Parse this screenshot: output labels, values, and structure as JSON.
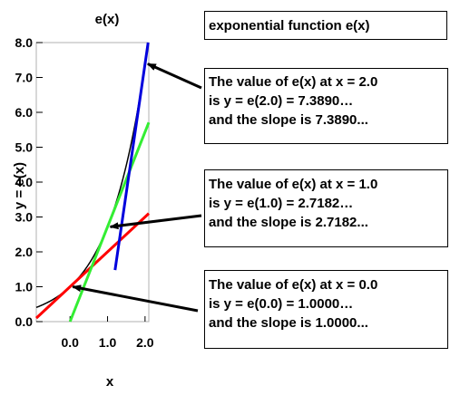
{
  "chart_data": {
    "type": "line",
    "title": "e(x)",
    "xlabel": "x",
    "ylabel": "y = e(x)",
    "xlim": [
      -0.9,
      2.1
    ],
    "ylim": [
      0,
      8
    ],
    "x_ticks": [
      0.0,
      1.0,
      2.0
    ],
    "x_tick_labels": [
      "0.0",
      "1.0",
      "2.0"
    ],
    "y_ticks": [
      0,
      1,
      2,
      3,
      4,
      5,
      6,
      7,
      8
    ],
    "y_tick_labels": [
      "0.0",
      "1.0",
      "2.0",
      "3.0",
      "4.0",
      "5.0",
      "6.0",
      "7.0",
      "8.0"
    ],
    "grid": false,
    "series": [
      {
        "function": "exp",
        "x_range": [
          -0.9,
          2.05
        ],
        "color": "#000000"
      },
      {
        "tangent_at": 0.0,
        "slope": 1.0,
        "x_range": [
          -0.9,
          2.1
        ],
        "color": "#ff0000"
      },
      {
        "tangent_at": 1.0,
        "slope": 2.7182,
        "x_range": [
          0.0,
          2.1
        ],
        "color": "#33ee33"
      },
      {
        "tangent_at": 2.0,
        "slope": 7.389,
        "x_range": [
          1.2,
          2.1
        ],
        "color": "#0000dd"
      }
    ],
    "annotations": [
      {
        "point_x": 2.0,
        "point_y": 7.389
      },
      {
        "point_x": 1.0,
        "point_y": 2.7182
      },
      {
        "point_x": 0.0,
        "point_y": 1.0
      }
    ]
  },
  "header_box": {
    "text": "exponential function e(x)"
  },
  "notes": [
    {
      "line1": "The value of e(x) at x = 2.0",
      "line2": "is y = e(2.0) = 7.3890…",
      "line3": "and the slope is 7.3890..."
    },
    {
      "line1": "The value of e(x) at x = 1.0",
      "line2": "is y = e(1.0) = 2.7182…",
      "line3": "and the slope is 2.7182..."
    },
    {
      "line1": "The value of e(x) at x = 0.0",
      "line2": "is y = e(0.0) = 1.0000…",
      "line3": "and the slope is 1.0000..."
    }
  ]
}
